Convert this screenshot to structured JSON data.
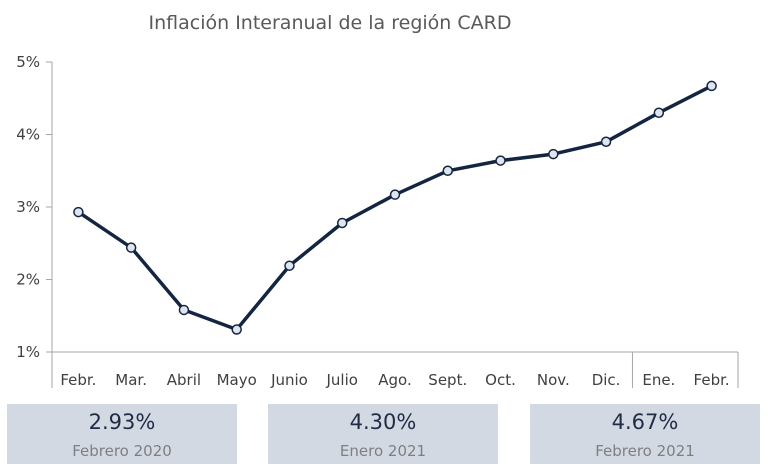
{
  "chart_data": {
    "type": "line",
    "title": "Inflación Interanual de la región CARD",
    "categories": [
      "Febr.",
      "Mar.",
      "Abril",
      "Mayo",
      "Junio",
      "Julio",
      "Ago.",
      "Sept.",
      "Oct.",
      "Nov.",
      "Dic.",
      "Ene.",
      "Febr."
    ],
    "series": [
      {
        "values": [
          2.93,
          2.44,
          1.58,
          1.31,
          2.19,
          2.78,
          3.17,
          3.5,
          3.64,
          3.73,
          3.9,
          4.3,
          4.67
        ]
      }
    ],
    "ylim": [
      1,
      5
    ],
    "yticks": [
      {
        "value": 1,
        "label": "1%"
      },
      {
        "value": 2,
        "label": "2%"
      },
      {
        "value": 3,
        "label": "3%"
      },
      {
        "value": 4,
        "label": "4%"
      },
      {
        "value": 5,
        "label": "5%"
      }
    ],
    "grid": false,
    "year_separator_after_index": 10,
    "colors": {
      "line": "#142542",
      "marker_fill": "#dfe5ef",
      "axis": "#a6a6a6"
    }
  },
  "kpis": [
    {
      "value": "2.93%",
      "label": "Febrero 2020"
    },
    {
      "value": "4.30%",
      "label": "Enero 2021"
    },
    {
      "value": "4.67%",
      "label": "Febrero 2021"
    }
  ]
}
